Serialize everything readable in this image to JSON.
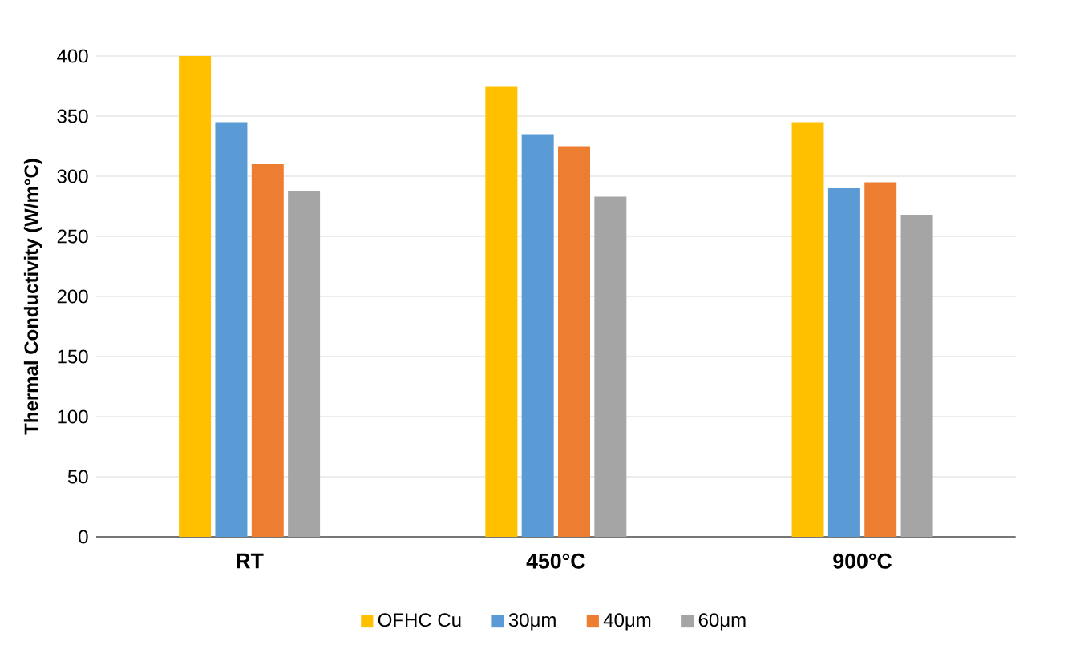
{
  "chart_data": {
    "type": "bar",
    "ylabel": "Thermal Conductivity (W/m°C)",
    "categories": [
      "RT",
      "450°C",
      "900°C"
    ],
    "series": [
      {
        "name": "OFHC Cu",
        "color": "#ffc000",
        "values": [
          400,
          375,
          345
        ]
      },
      {
        "name": "30μm",
        "color": "#5b9bd5",
        "values": [
          345,
          335,
          290
        ]
      },
      {
        "name": "40μm",
        "color": "#ed7d31",
        "values": [
          310,
          325,
          295
        ]
      },
      {
        "name": "60μm",
        "color": "#a5a5a5",
        "values": [
          288,
          283,
          268
        ]
      }
    ],
    "ylim": [
      0,
      400
    ],
    "yticks": [
      0,
      50,
      100,
      150,
      200,
      250,
      300,
      350,
      400
    ],
    "grid": "y",
    "legend": "bottom"
  }
}
